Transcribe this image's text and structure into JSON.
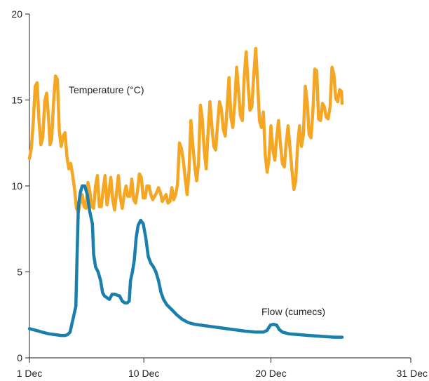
{
  "chart_data": {
    "type": "line",
    "xlim": [
      1,
      31
    ],
    "ylim": [
      0,
      20
    ],
    "grid": false,
    "x_ticks": [
      {
        "value": 1,
        "label": "1 Dec"
      },
      {
        "value": 10,
        "label": "10 Dec"
      },
      {
        "value": 20,
        "label": "20 Dec"
      },
      {
        "value": 31,
        "label": "31 Dec"
      }
    ],
    "y_ticks": [
      {
        "value": 0,
        "label": "0"
      },
      {
        "value": 5,
        "label": "5"
      },
      {
        "value": 10,
        "label": "10"
      },
      {
        "value": 15,
        "label": "15"
      },
      {
        "value": 20,
        "label": "20"
      }
    ],
    "series": [
      {
        "name": "Temperature (°C)",
        "color": "#f5a623",
        "label_position": "upper-left",
        "points": [
          [
            1.0,
            11.6
          ],
          [
            1.15,
            12.2
          ],
          [
            1.3,
            13.7
          ],
          [
            1.45,
            15.8
          ],
          [
            1.6,
            16.0
          ],
          [
            1.75,
            13.8
          ],
          [
            1.9,
            12.4
          ],
          [
            2.05,
            12.8
          ],
          [
            2.2,
            14.9
          ],
          [
            2.35,
            15.4
          ],
          [
            2.5,
            14.0
          ],
          [
            2.62,
            12.4
          ],
          [
            2.75,
            12.7
          ],
          [
            2.9,
            14.9
          ],
          [
            3.05,
            16.4
          ],
          [
            3.2,
            16.2
          ],
          [
            3.35,
            13.2
          ],
          [
            3.5,
            12.3
          ],
          [
            3.65,
            12.9
          ],
          [
            3.8,
            13.1
          ],
          [
            3.95,
            11.7
          ],
          [
            4.1,
            11.0
          ],
          [
            4.25,
            11.3
          ],
          [
            4.4,
            10.6
          ],
          [
            4.55,
            9.8
          ],
          [
            4.7,
            8.7
          ],
          [
            4.85,
            8.5
          ],
          [
            5.0,
            9.0
          ],
          [
            5.15,
            9.5
          ],
          [
            5.3,
            8.8
          ],
          [
            5.45,
            8.7
          ],
          [
            5.6,
            10.2
          ],
          [
            5.75,
            9.7
          ],
          [
            5.9,
            8.8
          ],
          [
            6.05,
            8.7
          ],
          [
            6.2,
            10.0
          ],
          [
            6.35,
            10.6
          ],
          [
            6.5,
            8.8
          ],
          [
            6.65,
            8.8
          ],
          [
            6.8,
            9.8
          ],
          [
            6.95,
            10.6
          ],
          [
            7.1,
            8.9
          ],
          [
            7.25,
            9.6
          ],
          [
            7.4,
            10.5
          ],
          [
            7.55,
            9.2
          ],
          [
            7.7,
            8.6
          ],
          [
            7.85,
            9.6
          ],
          [
            8.0,
            10.6
          ],
          [
            8.15,
            9.3
          ],
          [
            8.3,
            8.7
          ],
          [
            8.45,
            9.5
          ],
          [
            8.6,
            10.0
          ],
          [
            8.75,
            9.4
          ],
          [
            8.9,
            9.4
          ],
          [
            9.05,
            10.4
          ],
          [
            9.2,
            9.2
          ],
          [
            9.35,
            9.0
          ],
          [
            9.5,
            9.7
          ],
          [
            9.65,
            10.7
          ],
          [
            9.8,
            10.5
          ],
          [
            9.95,
            9.3
          ],
          [
            10.1,
            9.3
          ],
          [
            10.25,
            10.0
          ],
          [
            10.4,
            10.0
          ],
          [
            10.55,
            9.5
          ],
          [
            10.7,
            9.2
          ],
          [
            10.85,
            9.4
          ],
          [
            11.0,
            9.6
          ],
          [
            11.15,
            9.9
          ],
          [
            11.3,
            9.6
          ],
          [
            11.45,
            9.1
          ],
          [
            11.6,
            9.3
          ],
          [
            11.75,
            9.5
          ],
          [
            11.9,
            9.0
          ],
          [
            12.05,
            9.1
          ],
          [
            12.2,
            9.9
          ],
          [
            12.35,
            9.2
          ],
          [
            12.5,
            9.5
          ],
          [
            12.65,
            10.1
          ],
          [
            12.8,
            12.5
          ],
          [
            12.95,
            12.2
          ],
          [
            13.1,
            11.5
          ],
          [
            13.25,
            10.5
          ],
          [
            13.4,
            9.5
          ],
          [
            13.55,
            10.8
          ],
          [
            13.7,
            13.8
          ],
          [
            13.85,
            12.4
          ],
          [
            14.0,
            11.2
          ],
          [
            14.15,
            10.3
          ],
          [
            14.3,
            11.3
          ],
          [
            14.45,
            14.7
          ],
          [
            14.6,
            13.9
          ],
          [
            14.75,
            12.1
          ],
          [
            14.9,
            11.0
          ],
          [
            15.05,
            13.1
          ],
          [
            15.2,
            14.9
          ],
          [
            15.35,
            13.5
          ],
          [
            15.5,
            12.3
          ],
          [
            15.65,
            12.1
          ],
          [
            15.8,
            13.6
          ],
          [
            15.95,
            14.9
          ],
          [
            16.1,
            14.5
          ],
          [
            16.25,
            13.3
          ],
          [
            16.4,
            12.9
          ],
          [
            16.55,
            14.6
          ],
          [
            16.7,
            16.3
          ],
          [
            16.85,
            14.0
          ],
          [
            17.0,
            13.4
          ],
          [
            17.15,
            14.8
          ],
          [
            17.3,
            16.9
          ],
          [
            17.45,
            15.5
          ],
          [
            17.6,
            14.1
          ],
          [
            17.75,
            13.8
          ],
          [
            17.9,
            16.4
          ],
          [
            18.05,
            17.8
          ],
          [
            18.2,
            15.9
          ],
          [
            18.35,
            14.4
          ],
          [
            18.5,
            14.6
          ],
          [
            18.65,
            16.5
          ],
          [
            18.8,
            18.0
          ],
          [
            18.95,
            16.0
          ],
          [
            19.1,
            13.8
          ],
          [
            19.25,
            13.4
          ],
          [
            19.4,
            14.3
          ],
          [
            19.55,
            11.8
          ],
          [
            19.7,
            10.8
          ],
          [
            19.85,
            11.6
          ],
          [
            20.0,
            13.5
          ],
          [
            20.15,
            12.1
          ],
          [
            20.3,
            11.5
          ],
          [
            20.45,
            12.8
          ],
          [
            20.6,
            13.8
          ],
          [
            20.75,
            12.4
          ],
          [
            20.9,
            11.3
          ],
          [
            21.05,
            11.1
          ],
          [
            21.2,
            12.5
          ],
          [
            21.35,
            13.5
          ],
          [
            21.5,
            12.2
          ],
          [
            21.65,
            10.9
          ],
          [
            21.8,
            9.8
          ],
          [
            21.95,
            10.3
          ],
          [
            22.1,
            12.4
          ],
          [
            22.25,
            13.5
          ],
          [
            22.4,
            12.3
          ],
          [
            22.55,
            13.0
          ],
          [
            22.7,
            15.8
          ],
          [
            22.85,
            14.9
          ],
          [
            23.0,
            13.0
          ],
          [
            23.15,
            12.8
          ],
          [
            23.3,
            14.4
          ],
          [
            23.45,
            16.8
          ],
          [
            23.6,
            16.7
          ],
          [
            23.75,
            13.9
          ],
          [
            23.9,
            13.8
          ],
          [
            24.05,
            14.8
          ],
          [
            24.2,
            14.6
          ],
          [
            24.35,
            14.0
          ],
          [
            24.5,
            13.9
          ],
          [
            24.65,
            14.6
          ],
          [
            24.8,
            16.9
          ],
          [
            24.95,
            16.5
          ],
          [
            25.1,
            15.1
          ],
          [
            25.25,
            14.9
          ],
          [
            25.4,
            15.6
          ],
          [
            25.55,
            15.5
          ],
          [
            25.6,
            14.8
          ]
        ]
      },
      {
        "name": "Flow (cumecs)",
        "color": "#1a7fac",
        "label_position": "lower-right",
        "points": [
          [
            1.0,
            1.7
          ],
          [
            1.5,
            1.6
          ],
          [
            2.0,
            1.5
          ],
          [
            2.5,
            1.4
          ],
          [
            3.0,
            1.35
          ],
          [
            3.5,
            1.3
          ],
          [
            3.8,
            1.3
          ],
          [
            4.0,
            1.35
          ],
          [
            4.2,
            1.5
          ],
          [
            4.35,
            2.0
          ],
          [
            4.5,
            2.5
          ],
          [
            4.65,
            3.0
          ],
          [
            4.75,
            6.0
          ],
          [
            4.85,
            8.8
          ],
          [
            5.0,
            9.6
          ],
          [
            5.15,
            10.0
          ],
          [
            5.35,
            10.0
          ],
          [
            5.55,
            9.5
          ],
          [
            5.75,
            8.5
          ],
          [
            5.95,
            7.8
          ],
          [
            6.05,
            6.0
          ],
          [
            6.2,
            5.3
          ],
          [
            6.4,
            5.0
          ],
          [
            6.6,
            4.5
          ],
          [
            6.75,
            3.8
          ],
          [
            6.9,
            3.6
          ],
          [
            7.1,
            3.5
          ],
          [
            7.3,
            3.4
          ],
          [
            7.5,
            3.7
          ],
          [
            7.7,
            3.7
          ],
          [
            7.9,
            3.65
          ],
          [
            8.1,
            3.6
          ],
          [
            8.3,
            3.3
          ],
          [
            8.5,
            3.2
          ],
          [
            8.7,
            3.2
          ],
          [
            8.85,
            3.3
          ],
          [
            8.95,
            4.5
          ],
          [
            9.1,
            5.0
          ],
          [
            9.25,
            5.7
          ],
          [
            9.4,
            7.0
          ],
          [
            9.55,
            7.7
          ],
          [
            9.75,
            8.0
          ],
          [
            9.95,
            7.8
          ],
          [
            10.15,
            7.0
          ],
          [
            10.35,
            5.9
          ],
          [
            10.55,
            5.5
          ],
          [
            10.75,
            5.3
          ],
          [
            10.95,
            5.0
          ],
          [
            11.15,
            4.5
          ],
          [
            11.35,
            3.8
          ],
          [
            11.55,
            3.4
          ],
          [
            11.8,
            3.1
          ],
          [
            12.2,
            2.8
          ],
          [
            12.6,
            2.5
          ],
          [
            13.0,
            2.25
          ],
          [
            13.5,
            2.05
          ],
          [
            14.0,
            1.95
          ],
          [
            15.0,
            1.85
          ],
          [
            16.0,
            1.75
          ],
          [
            17.0,
            1.65
          ],
          [
            18.0,
            1.55
          ],
          [
            18.8,
            1.5
          ],
          [
            19.4,
            1.5
          ],
          [
            19.7,
            1.6
          ],
          [
            19.95,
            1.9
          ],
          [
            20.2,
            1.95
          ],
          [
            20.45,
            1.9
          ],
          [
            20.65,
            1.65
          ],
          [
            20.9,
            1.5
          ],
          [
            21.4,
            1.4
          ],
          [
            22.2,
            1.35
          ],
          [
            23.0,
            1.3
          ],
          [
            24.0,
            1.25
          ],
          [
            25.0,
            1.2
          ],
          [
            25.6,
            1.2
          ]
        ]
      }
    ]
  }
}
